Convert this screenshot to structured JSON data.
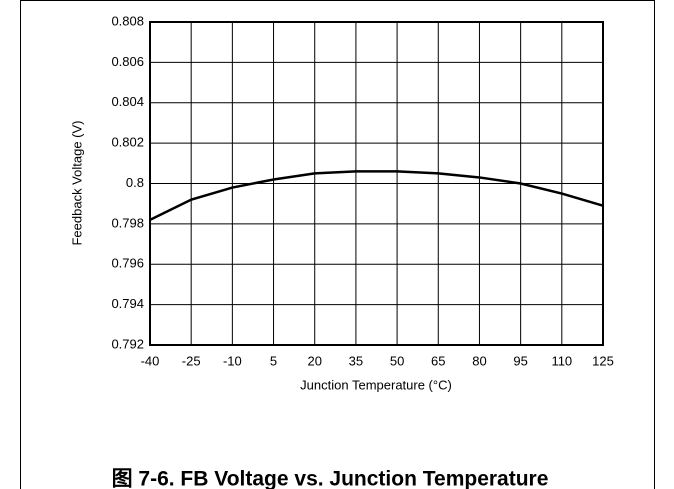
{
  "chart_data": {
    "type": "line",
    "caption": "图 7-6. FB Voltage vs. Junction Temperature",
    "x_label": "Junction Temperature (°C)",
    "y_label": "Feedback Voltage (V)",
    "x": [
      -40,
      -25,
      -10,
      5,
      20,
      35,
      50,
      65,
      80,
      95,
      110,
      125
    ],
    "series": [
      {
        "name": "FB Voltage",
        "color": "#000000",
        "values": [
          0.7982,
          0.7992,
          0.7998,
          0.8002,
          0.8005,
          0.8006,
          0.8006,
          0.8005,
          0.8003,
          0.8,
          0.7995,
          0.7989
        ]
      }
    ],
    "xlim": [
      -40,
      125
    ],
    "xticks": [
      -40,
      -25,
      -10,
      5,
      20,
      35,
      50,
      65,
      80,
      95,
      110,
      125
    ],
    "ylim": [
      0.792,
      0.808
    ],
    "yticks": [
      0.792,
      0.794,
      0.796,
      0.798,
      0.8,
      0.802,
      0.804,
      0.806,
      0.808
    ],
    "grid": true
  }
}
